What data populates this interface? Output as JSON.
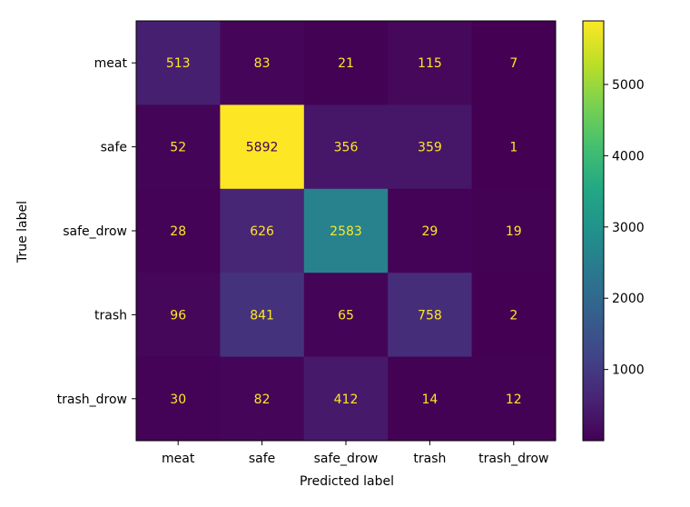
{
  "chart_data": {
    "type": "heatmap",
    "title": "",
    "xlabel": "Predicted label",
    "ylabel": "True label",
    "x_categories": [
      "meat",
      "safe",
      "safe_drow",
      "trash",
      "trash_drow"
    ],
    "y_categories": [
      "meat",
      "safe",
      "safe_drow",
      "trash",
      "trash_drow"
    ],
    "values": [
      [
        513,
        83,
        21,
        115,
        7
      ],
      [
        52,
        5892,
        356,
        359,
        1
      ],
      [
        28,
        626,
        2583,
        29,
        19
      ],
      [
        96,
        841,
        65,
        758,
        2
      ],
      [
        30,
        82,
        412,
        14,
        12
      ]
    ],
    "colormap": "viridis",
    "text_color_low": "#fde725",
    "text_color_high": "#440154",
    "colorbar": {
      "range": [
        1,
        5892
      ],
      "ticks": [
        1000,
        2000,
        3000,
        4000,
        5000
      ],
      "tick_labels": [
        "1000",
        "2000",
        "3000",
        "4000",
        "5000"
      ]
    }
  }
}
